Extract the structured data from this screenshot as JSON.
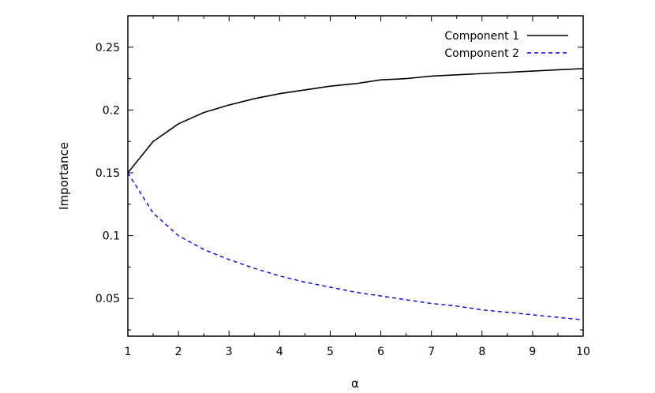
{
  "chart_data": {
    "type": "line",
    "xlabel": "α",
    "ylabel": "Importance",
    "xlim": [
      1,
      10
    ],
    "ylim": [
      0.02,
      0.275
    ],
    "xticks": [
      1,
      2,
      3,
      4,
      5,
      6,
      7,
      8,
      9,
      10
    ],
    "yticks": [
      0.05,
      0.1,
      0.15,
      0.2,
      0.25
    ],
    "ytick_labels": [
      "0.05",
      "0.1",
      "0.15",
      "0.2",
      "0.25"
    ],
    "grid": false,
    "legend_position": "top-right",
    "x": [
      1,
      1.5,
      2,
      2.5,
      3,
      3.5,
      4,
      4.5,
      5,
      5.5,
      6,
      6.5,
      7,
      7.5,
      8,
      8.5,
      9,
      9.5,
      10
    ],
    "series": [
      {
        "name": "Component 1",
        "style": "solid",
        "color": "#000000",
        "values": [
          0.15,
          0.175,
          0.189,
          0.198,
          0.204,
          0.209,
          0.213,
          0.216,
          0.219,
          0.221,
          0.224,
          0.225,
          0.227,
          0.228,
          0.229,
          0.23,
          0.231,
          0.232,
          0.233
        ]
      },
      {
        "name": "Component 2",
        "style": "dashed",
        "color": "#0000dd",
        "values": [
          0.15,
          0.118,
          0.1,
          0.089,
          0.081,
          0.074,
          0.068,
          0.063,
          0.059,
          0.055,
          0.052,
          0.049,
          0.046,
          0.044,
          0.041,
          0.039,
          0.037,
          0.035,
          0.033
        ]
      }
    ]
  }
}
